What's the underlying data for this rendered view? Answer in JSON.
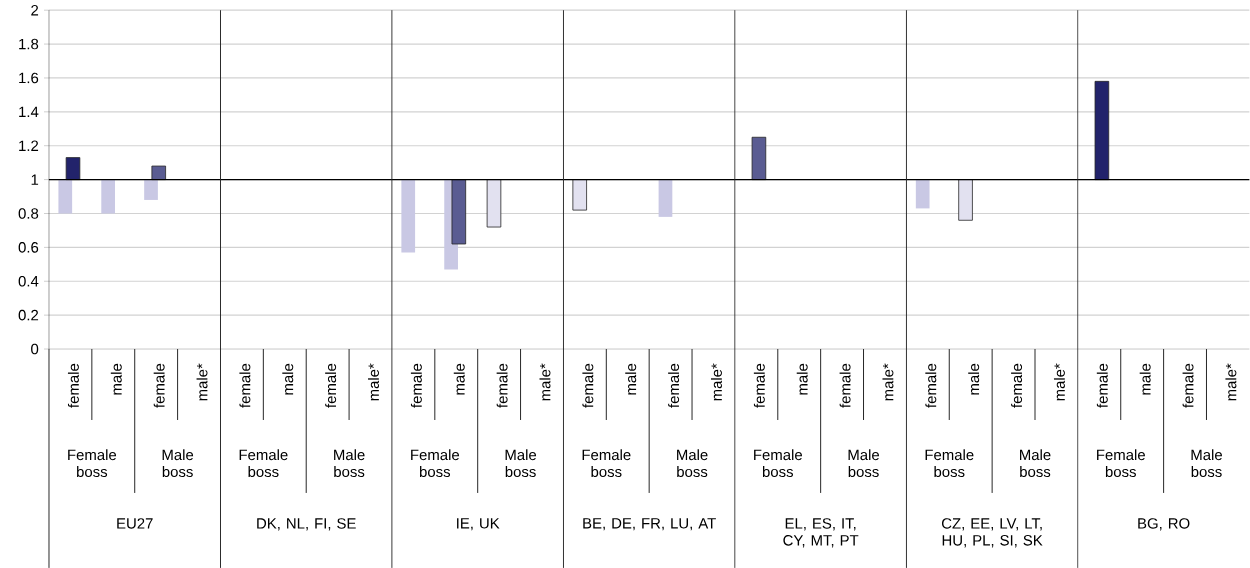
{
  "chart_data": {
    "type": "bar",
    "categories": [
      "female",
      "male",
      "female",
      "male*",
      "female",
      "male",
      "female",
      "male*",
      "female",
      "male",
      "female",
      "male*",
      "female",
      "male",
      "female",
      "male*",
      "female",
      "male",
      "female",
      "male*",
      "female",
      "male",
      "female",
      "male*",
      "female",
      "male",
      "female",
      "male*"
    ],
    "series": [
      {
        "color": "#c9c8e4",
        "values": [
          -0.2,
          -0.2,
          -0.12,
          null,
          null,
          null,
          null,
          null,
          -0.43,
          -0.53,
          null,
          null,
          null,
          null,
          -0.22,
          null,
          null,
          null,
          null,
          null,
          -0.17,
          null,
          null,
          null,
          null,
          null,
          null,
          null
        ],
        "base": [
          1,
          1,
          1,
          null,
          null,
          null,
          null,
          null,
          1,
          1,
          null,
          null,
          null,
          null,
          1,
          null,
          null,
          null,
          null,
          null,
          1,
          null,
          null,
          null,
          null,
          null,
          null,
          null
        ]
      },
      {
        "color": "#e2e1f0",
        "values": [
          null,
          null,
          null,
          null,
          null,
          null,
          null,
          null,
          null,
          null,
          -0.28,
          null,
          -0.18,
          null,
          null,
          null,
          null,
          null,
          null,
          null,
          null,
          -0.24,
          null,
          null,
          null,
          null,
          null,
          null
        ],
        "base": [
          null,
          null,
          null,
          null,
          null,
          null,
          null,
          null,
          null,
          null,
          1,
          null,
          1,
          null,
          null,
          null,
          null,
          null,
          null,
          null,
          null,
          1,
          null,
          null,
          null,
          null,
          null,
          null
        ]
      },
      {
        "color": "#22236b",
        "values": [
          0.13,
          null,
          null,
          null,
          null,
          null,
          null,
          null,
          null,
          null,
          null,
          null,
          null,
          null,
          null,
          null,
          null,
          null,
          null,
          null,
          null,
          null,
          null,
          null,
          0.58,
          null,
          null,
          null
        ],
        "base": [
          1,
          null,
          null,
          null,
          null,
          null,
          null,
          null,
          null,
          null,
          null,
          null,
          null,
          null,
          null,
          null,
          null,
          null,
          null,
          null,
          null,
          null,
          null,
          null,
          1,
          null,
          null,
          null
        ]
      },
      {
        "color": "#5a5c92",
        "values": [
          null,
          null,
          0.08,
          null,
          null,
          null,
          null,
          null,
          null,
          -0.38,
          null,
          null,
          null,
          null,
          null,
          null,
          0.25,
          null,
          null,
          null,
          null,
          null,
          null,
          null,
          null,
          null,
          null,
          null
        ],
        "base": [
          null,
          null,
          1,
          null,
          null,
          null,
          null,
          null,
          null,
          1,
          null,
          null,
          null,
          null,
          null,
          null,
          1,
          null,
          null,
          null,
          null,
          null,
          null,
          null,
          null,
          null,
          null,
          null
        ]
      }
    ],
    "ylim": [
      0,
      2
    ],
    "yticks": [
      0,
      0.2,
      0.4,
      0.6,
      0.8,
      1,
      1.2,
      1.4,
      1.6,
      1.8,
      2
    ],
    "grid": "y",
    "ref_lines": [
      {
        "axis": "y",
        "value": 1,
        "color": "#000000"
      }
    ],
    "annotations": [
      "Female boss",
      "Male boss",
      "Female boss",
      "Male boss",
      "Female boss",
      "Male boss",
      "Female boss",
      "Male boss",
      "Female boss",
      "Male boss",
      "Female boss",
      "Male boss",
      "Female boss",
      "Male boss",
      "EU27",
      "DK, NL, FI, SE",
      "IE, UK",
      "BE, DE, FR, LU, AT",
      "EL, ES, IT, CY, MT, PT",
      "CZ, EE, LV, LT, HU, PL, SI, SK",
      "BG, RO"
    ]
  }
}
